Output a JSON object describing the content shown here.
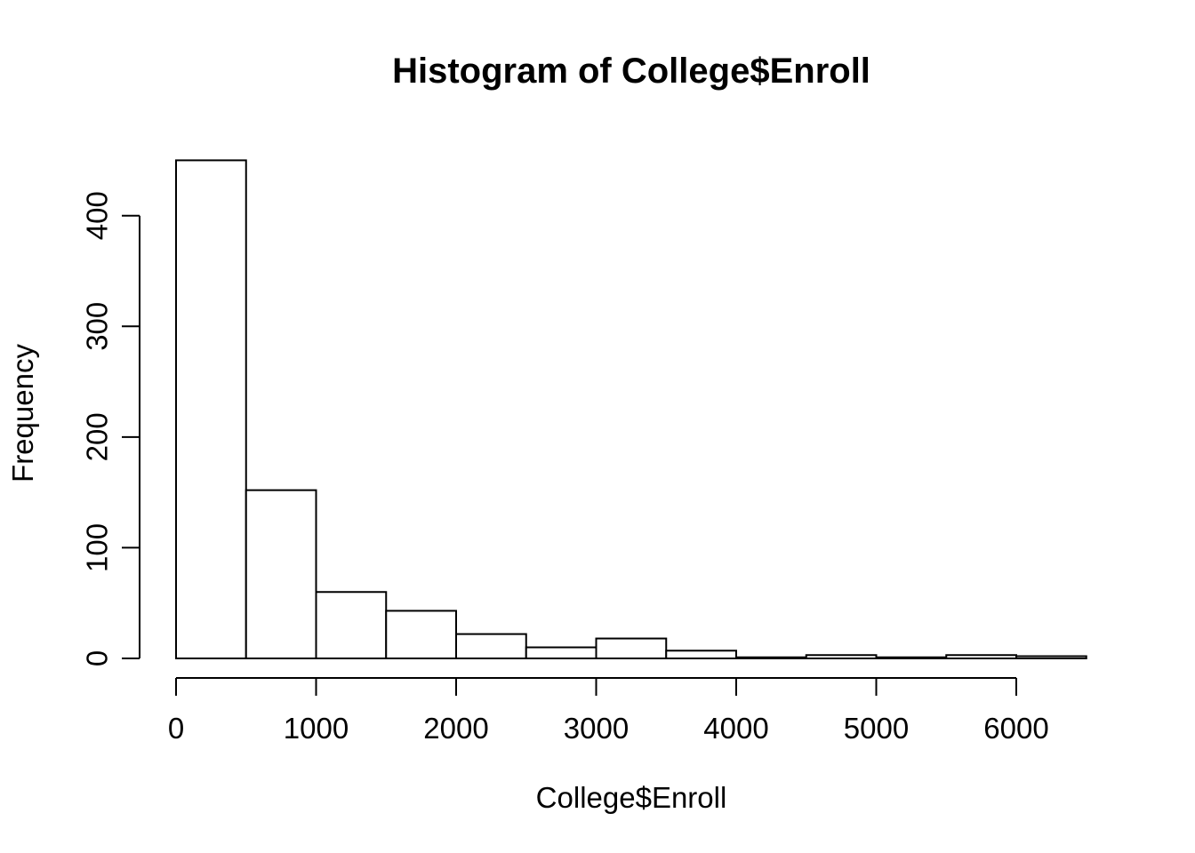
{
  "figure": {
    "background": "#ffffff",
    "foreground": "#000000"
  },
  "chart_data": {
    "type": "bar",
    "subtype": "histogram",
    "title": "Histogram of College$Enroll",
    "xlabel": "College$Enroll",
    "ylabel": "Frequency",
    "bin_width": 500,
    "bin_edges": [
      0,
      500,
      1000,
      1500,
      2000,
      2500,
      3000,
      3500,
      4000,
      4500,
      5000,
      5500,
      6000,
      6500
    ],
    "counts": [
      450,
      152,
      60,
      43,
      22,
      10,
      18,
      7,
      1,
      3,
      1,
      3,
      2
    ],
    "x_ticks": [
      0,
      1000,
      2000,
      3000,
      4000,
      5000,
      6000
    ],
    "y_ticks": [
      0,
      100,
      200,
      300,
      400
    ],
    "xlim": [
      0,
      6500
    ],
    "ylim": [
      0,
      450
    ],
    "grid": false,
    "legend_position": "none",
    "bar_fill": "#ffffff",
    "line_color": "#000000"
  }
}
